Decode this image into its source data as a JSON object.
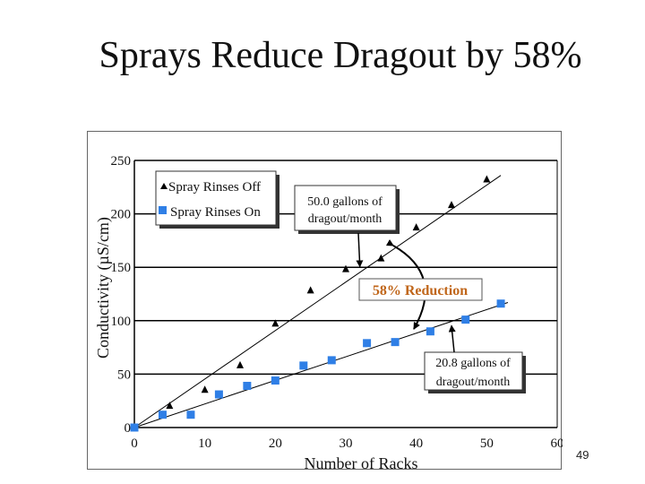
{
  "slide": {
    "title": "Sprays Reduce Dragout by 58%",
    "page_number": "49"
  },
  "colors": {
    "off_series": "#000000",
    "on_series": "#2f7fe6",
    "reduction_text": "#c0661a"
  },
  "chart_data": {
    "type": "scatter",
    "title": "",
    "xlabel": "Number of Racks",
    "ylabel": "Conductivity (µS/cm)",
    "xlim": [
      0,
      60
    ],
    "ylim": [
      0,
      250
    ],
    "x_ticks": [
      "0",
      "10",
      "20",
      "30",
      "40",
      "50",
      "60"
    ],
    "y_ticks": [
      "0",
      "50",
      "100",
      "150",
      "200",
      "250"
    ],
    "grid": "horizontal",
    "legend_placement": "top-left",
    "series": [
      {
        "name": "Spray Rinses Off",
        "marker": "triangle",
        "x": [
          0,
          5,
          10,
          15,
          20,
          25,
          30,
          35,
          40,
          45,
          50
        ],
        "y": [
          0,
          20,
          35,
          58,
          97,
          128,
          148,
          158,
          187,
          208,
          232
        ],
        "trendline": {
          "x": [
            0,
            52
          ],
          "y": [
            0,
            236
          ]
        }
      },
      {
        "name": "Spray Rinses On",
        "marker": "square",
        "x": [
          0,
          4,
          8,
          12,
          16,
          20,
          24,
          28,
          33,
          37,
          42,
          47,
          52
        ],
        "y": [
          0,
          12,
          12,
          31,
          39,
          44,
          58,
          63,
          79,
          80,
          90,
          101,
          116
        ],
        "trendline": {
          "x": [
            0,
            53
          ],
          "y": [
            0,
            117
          ]
        }
      }
    ],
    "annotations": [
      {
        "id": "off",
        "lines": [
          "50.0 gallons of",
          "dragout/month"
        ],
        "target": [
          32,
          149
        ]
      },
      {
        "id": "on",
        "lines": [
          "20.8 gallons of",
          "dragout/month"
        ],
        "target": [
          45,
          97
        ]
      },
      {
        "id": "reduction",
        "text": "58% Reduction"
      }
    ]
  }
}
